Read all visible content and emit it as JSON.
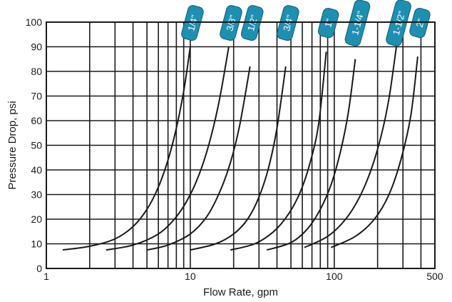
{
  "chart_data": {
    "type": "line",
    "title": "",
    "xlabel": "Flow Rate, gpm",
    "ylabel": "Pressure Drop, psi",
    "xscale": "log",
    "xlim": [
      1,
      500
    ],
    "ylim": [
      0,
      100
    ],
    "x_tick_labels": [
      {
        "value": 1,
        "label": "1"
      },
      {
        "value": 10,
        "label": "10"
      },
      {
        "value": 100,
        "label": "100"
      },
      {
        "value": 500,
        "label": "500"
      }
    ],
    "y_ticks": [
      0,
      10,
      20,
      30,
      40,
      50,
      60,
      70,
      80,
      90,
      100
    ],
    "grid": true,
    "line_color": "#1a1a1a",
    "tag_color": "#1f8fb1",
    "series": [
      {
        "name": "1/4\"",
        "x": [
          1.3,
          2.0,
          3.0,
          4.0,
          5.0,
          6.0,
          7.0,
          8.0,
          9.0,
          10.0
        ],
        "y": [
          7.5,
          9,
          12,
          17,
          24,
          33,
          44,
          57,
          72,
          90
        ]
      },
      {
        "name": "3/8\"",
        "x": [
          2.6,
          4.0,
          6.0,
          8.0,
          10.0,
          12.0,
          14.0,
          16.0,
          18.5
        ],
        "y": [
          7.5,
          9.5,
          14,
          21,
          30,
          41,
          54,
          69,
          90
        ]
      },
      {
        "name": "1/2\"",
        "x": [
          5.0,
          7.0,
          10.0,
          13.0,
          16.0,
          19.0,
          22.0,
          26.0
        ],
        "y": [
          7.5,
          9.5,
          14,
          21,
          31,
          43,
          58,
          82
        ]
      },
      {
        "name": "3/4\"",
        "x": [
          10.0,
          15.0,
          20.0,
          25.0,
          30.0,
          35.0,
          40.0,
          46.0
        ],
        "y": [
          7.5,
          10,
          14,
          20,
          29,
          41,
          57,
          82
        ]
      },
      {
        "name": "1\"",
        "x": [
          19.0,
          28.0,
          38.0,
          48.0,
          58.0,
          68.0,
          78.0,
          88.0
        ],
        "y": [
          7.5,
          10,
          15,
          22,
          31,
          43,
          59,
          88
        ]
      },
      {
        "name": "1-1/4\"",
        "x": [
          34.0,
          50.0,
          65.0,
          80.0,
          95.0,
          110.0,
          125.0,
          140.0
        ],
        "y": [
          7.5,
          10.5,
          16,
          24,
          34,
          47,
          63,
          85
        ]
      },
      {
        "name": "1-1/2\"",
        "x": [
          62.0,
          90.0,
          120.0,
          150.0,
          180.0,
          210.0,
          240.0,
          270.0
        ],
        "y": [
          8.5,
          13,
          20,
          29,
          40,
          53,
          69,
          90
        ]
      },
      {
        "name": "2\"",
        "x": [
          95.0,
          140.0,
          190.0,
          240.0,
          290.0,
          340.0,
          380.0
        ],
        "y": [
          8.5,
          13,
          20,
          30,
          44,
          62,
          86
        ]
      }
    ]
  }
}
